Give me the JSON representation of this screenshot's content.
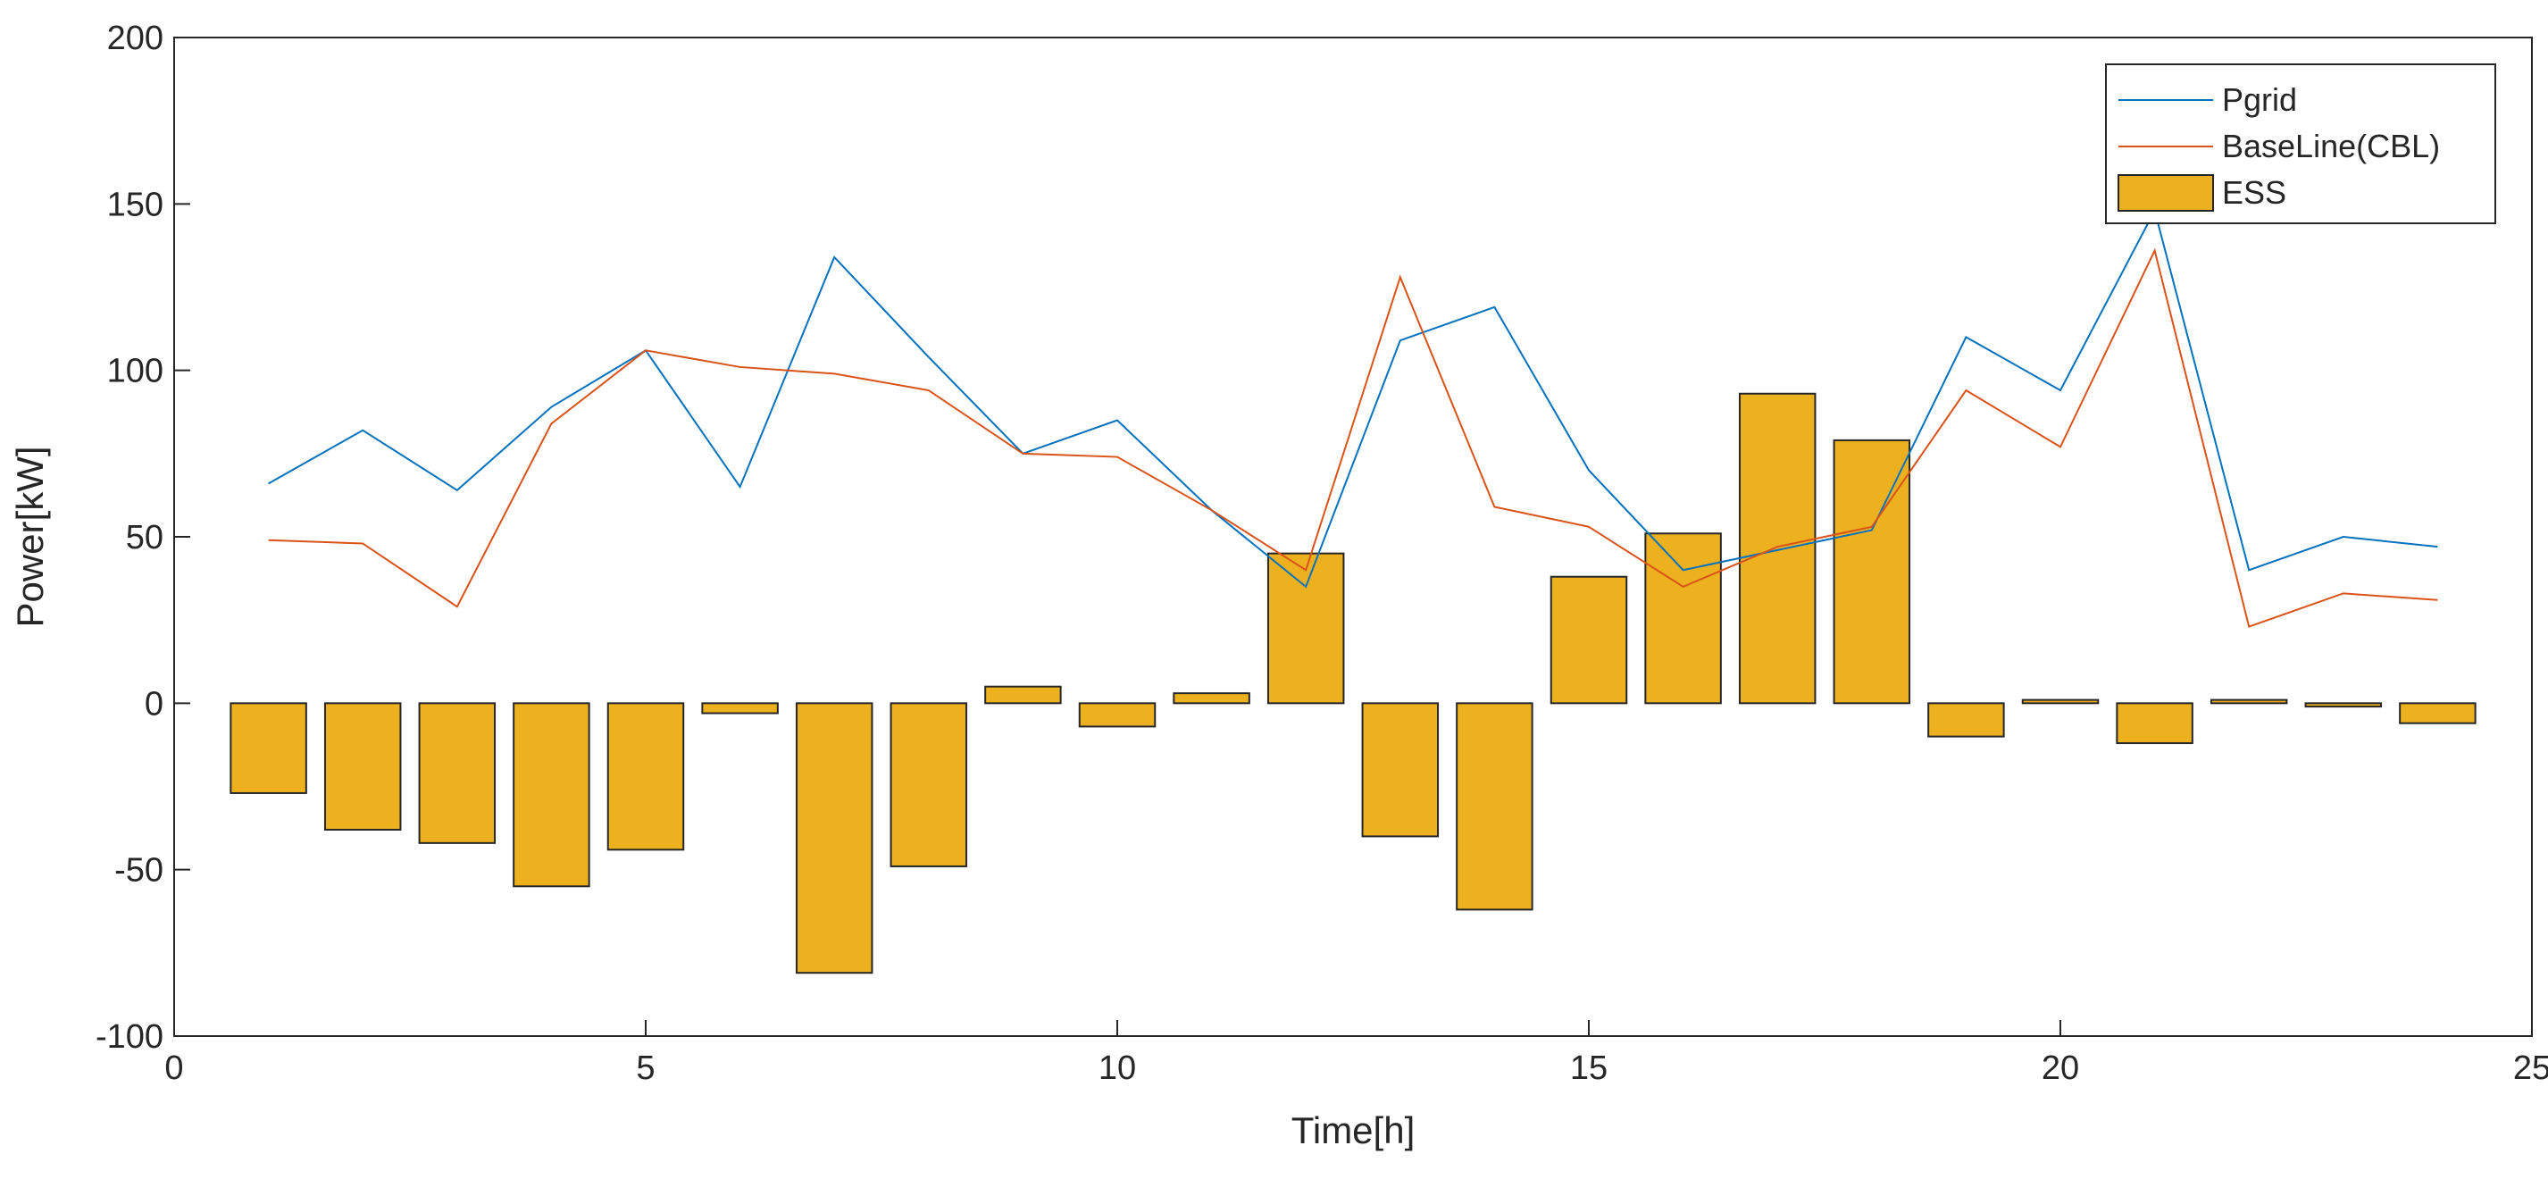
{
  "chart_data": {
    "type": "bar",
    "title": "",
    "xlabel": "Time[h]",
    "ylabel": "Power[kW]",
    "xlim": [
      0,
      25
    ],
    "ylim": [
      -100,
      200
    ],
    "xticks": [
      0,
      5,
      10,
      15,
      20,
      25
    ],
    "yticks": [
      -100,
      -50,
      0,
      50,
      100,
      150,
      200
    ],
    "grid": false,
    "legend_position": "top-right",
    "x": [
      1,
      2,
      3,
      4,
      5,
      6,
      7,
      8,
      9,
      10,
      11,
      12,
      13,
      14,
      15,
      16,
      17,
      18,
      19,
      20,
      21,
      22,
      23,
      24
    ],
    "series": [
      {
        "name": "Pgrid",
        "kind": "line",
        "color": "#0072BD",
        "values": [
          66,
          82,
          64,
          89,
          106,
          65,
          134,
          104,
          75,
          85,
          58,
          35,
          109,
          119,
          70,
          40,
          46,
          52,
          110,
          94,
          148,
          40,
          50,
          47
        ]
      },
      {
        "name": "BaseLine(CBL)",
        "kind": "line",
        "color": "#D95319",
        "values": [
          49,
          48,
          29,
          84,
          106,
          101,
          99,
          94,
          75,
          74,
          58,
          40,
          128,
          59,
          53,
          35,
          47,
          53,
          94,
          77,
          136,
          23,
          33,
          31
        ]
      },
      {
        "name": "ESS",
        "kind": "bar",
        "color": "#EDB120",
        "values": [
          -27,
          -38,
          -42,
          -55,
          -44,
          -3,
          -81,
          -49,
          5,
          -7,
          3,
          45,
          -40,
          -62,
          38,
          51,
          93,
          79,
          -10,
          1,
          -12,
          1,
          -1,
          -6
        ]
      }
    ]
  }
}
